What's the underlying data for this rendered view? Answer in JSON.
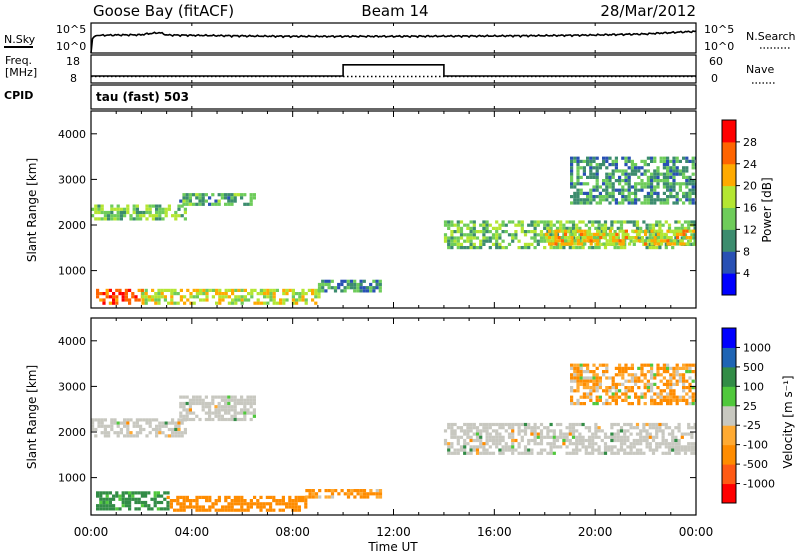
{
  "header": {
    "station": "Goose Bay (fitACF)",
    "beam": "Beam 14",
    "date": "28/Mar/2012"
  },
  "panels": {
    "noise": {
      "left_label": "N.Sky",
      "left_ticks": [
        "10^5",
        "10^0"
      ],
      "right_ticks": [
        "10^5",
        "10^0"
      ],
      "right_label": "N.Search"
    },
    "freq": {
      "left_label_line1": "Freq.",
      "left_label_line2": "[MHz]",
      "left_ticks": [
        "18",
        "8"
      ],
      "right_ticks": [
        "60",
        "0"
      ],
      "right_label": "Nave"
    },
    "cpid": {
      "label": "CPID",
      "mode_text": "tau (fast) 503"
    },
    "power": {
      "ylabel": "Slant Range [km]",
      "cbar_label": "Power [dB]"
    },
    "velocity": {
      "ylabel": "Slant Range [km]",
      "cbar_label": "Velocity [m s⁻¹]"
    }
  },
  "xaxis": {
    "label": "Time UT",
    "ticks": [
      "00:00",
      "04:00",
      "08:00",
      "12:00",
      "16:00",
      "20:00",
      "00:00"
    ]
  },
  "colors": {
    "power": [
      "#0000ff",
      "#2850b4",
      "#3c8c6e",
      "#6ecc5a",
      "#b4e632",
      "#ffaa00",
      "#ff6400",
      "#ff0000"
    ],
    "velocity": [
      "#ff0000",
      "#ff5a14",
      "#ff8c00",
      "#ffaa32",
      "#c8c8c0",
      "#50c83c",
      "#328c46",
      "#1e64b4",
      "#0000ff"
    ],
    "ground_scatter": "#c8c8c0"
  },
  "chart_data": [
    {
      "type": "line",
      "title": "N.Sky",
      "x_unit": "hours UT",
      "xlim": [
        0,
        24
      ],
      "ylog": true,
      "ylim": [
        1,
        100000
      ],
      "series": [
        {
          "name": "N.Sky",
          "x": [
            0,
            0.2,
            0.4,
            1,
            2,
            2.7,
            3,
            4,
            6,
            8,
            10,
            12,
            14,
            16,
            18,
            20,
            22,
            23,
            24
          ],
          "y": [
            1,
            800,
            900,
            1000,
            1100,
            2500,
            1000,
            900,
            700,
            600,
            600,
            600,
            650,
            700,
            800,
            1000,
            1500,
            2500,
            4000
          ]
        }
      ]
    },
    {
      "type": "line",
      "title": "Freq.",
      "x_unit": "hours UT",
      "xlim": [
        0,
        24
      ],
      "ylim": [
        8,
        18
      ],
      "y2lim": [
        0,
        60
      ],
      "series": [
        {
          "name": "Freq.",
          "x": [
            0,
            10,
            10,
            14,
            14,
            24
          ],
          "y": [
            10.5,
            10.5,
            14.5,
            14.5,
            10.5,
            10.5
          ]
        },
        {
          "name": "Nave",
          "axis": "right",
          "x": [
            0,
            24
          ],
          "y": [
            14,
            14
          ]
        }
      ]
    },
    {
      "type": "heatmap",
      "title": "Power [dB]",
      "x_unit": "hours UT",
      "y_unit": "km",
      "xlim": [
        0,
        24
      ],
      "ylim": [
        180,
        4500
      ],
      "yticks": [
        1000,
        2000,
        3000,
        4000
      ],
      "cbar_ticks": [
        4,
        8,
        12,
        16,
        20,
        24,
        28
      ],
      "cbar_range": [
        0,
        32
      ],
      "regions": [
        {
          "x": [
            0,
            3.7
          ],
          "y": [
            2100,
            2450
          ],
          "value": 15
        },
        {
          "x": [
            3.5,
            6.5
          ],
          "y": [
            2450,
            2700
          ],
          "value": 12
        },
        {
          "x": [
            0.2,
            2
          ],
          "y": [
            300,
            600
          ],
          "value": 26
        },
        {
          "x": [
            2,
            9
          ],
          "y": [
            300,
            600
          ],
          "value": 18
        },
        {
          "x": [
            9,
            11.5
          ],
          "y": [
            550,
            800
          ],
          "value": 10
        },
        {
          "x": [
            14,
            24
          ],
          "y": [
            1500,
            2100
          ],
          "value": 14
        },
        {
          "x": [
            18,
            24
          ],
          "y": [
            1600,
            1900
          ],
          "value": 20
        },
        {
          "x": [
            19,
            24
          ],
          "y": [
            2500,
            3500
          ],
          "value": 11
        }
      ]
    },
    {
      "type": "heatmap",
      "title": "Velocity [m s⁻¹]",
      "x_unit": "hours UT",
      "y_unit": "km",
      "xlim": [
        0,
        24
      ],
      "ylim": [
        180,
        4500
      ],
      "yticks": [
        1000,
        2000,
        3000,
        4000
      ],
      "cbar_ticks": [
        1000,
        500,
        100,
        25,
        -25,
        -100,
        -500,
        -1000
      ],
      "regions": [
        {
          "x": [
            0,
            3.7
          ],
          "y": [
            1900,
            2300
          ],
          "value": 0,
          "ground_scatter": true
        },
        {
          "x": [
            3.5,
            6.5
          ],
          "y": [
            2300,
            2800
          ],
          "value": 0,
          "ground_scatter": true
        },
        {
          "x": [
            0.2,
            3
          ],
          "y": [
            300,
            700
          ],
          "value": 200
        },
        {
          "x": [
            3,
            8.5
          ],
          "y": [
            300,
            600
          ],
          "value": -300
        },
        {
          "x": [
            8.5,
            11.5
          ],
          "y": [
            550,
            750
          ],
          "value": -150
        },
        {
          "x": [
            14,
            24
          ],
          "y": [
            1500,
            2200
          ],
          "value": 0,
          "ground_scatter": true
        },
        {
          "x": [
            19,
            24
          ],
          "y": [
            2600,
            3500
          ],
          "value": -100
        }
      ]
    }
  ]
}
